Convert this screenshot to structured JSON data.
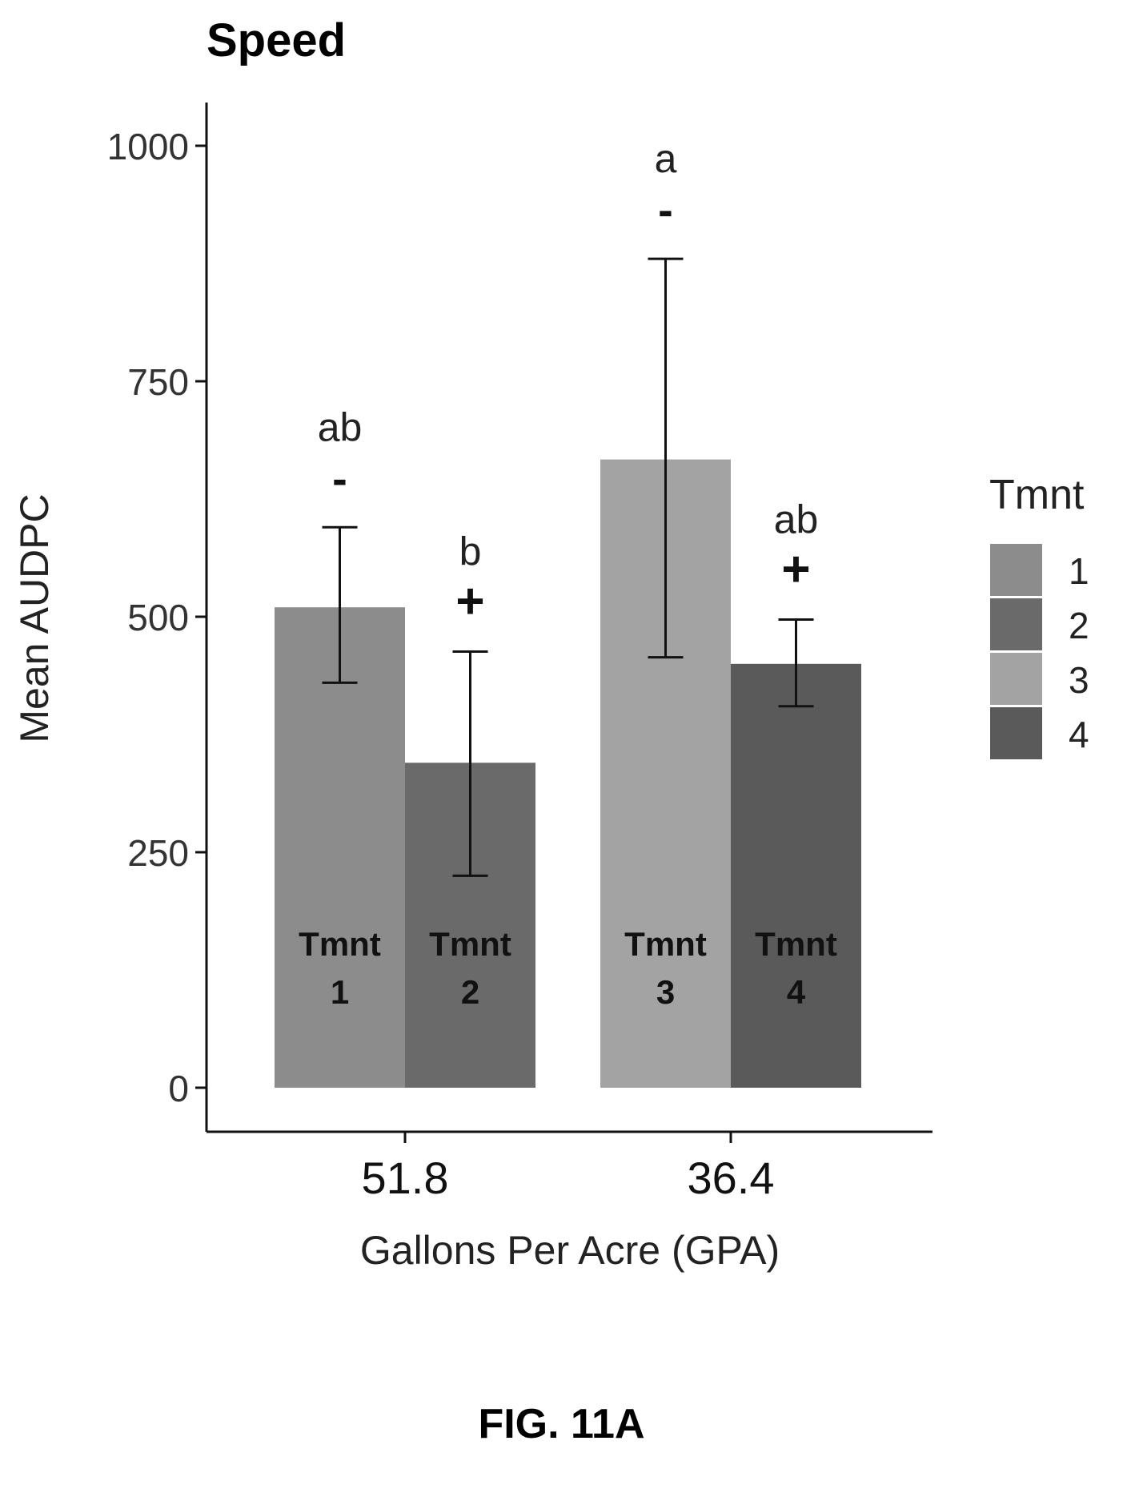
{
  "chart_data": {
    "type": "bar",
    "title": "Speed",
    "xlabel": "Gallons Per Acre (GPA)",
    "ylabel": "Mean AUDPC",
    "ylim": [
      -50,
      1050
    ],
    "yticks": [
      0,
      250,
      500,
      750,
      1000
    ],
    "grid": false,
    "legend": {
      "title": "Tmnt",
      "position": "right",
      "entries": [
        {
          "label": "1",
          "color": "#8c8c8c"
        },
        {
          "label": "2",
          "color": "#6a6a6a"
        },
        {
          "label": "3",
          "color": "#a3a3a3"
        },
        {
          "label": "4",
          "color": "#5a5a5a"
        }
      ]
    },
    "categories": [
      "51.8",
      "36.4"
    ],
    "bars": [
      {
        "category": "51.8",
        "tmnt": "1",
        "value": 510,
        "err_low": 430,
        "err_high": 595,
        "letter": "ab",
        "sign": "-",
        "label_top": "Tmnt",
        "label_bottom": "1",
        "color": "#8c8c8c"
      },
      {
        "category": "51.8",
        "tmnt": "2",
        "value": 345,
        "err_low": 225,
        "err_high": 463,
        "letter": "b",
        "sign": "+",
        "label_top": "Tmnt",
        "label_bottom": "2",
        "color": "#6a6a6a"
      },
      {
        "category": "36.4",
        "tmnt": "3",
        "value": 667,
        "err_low": 457,
        "err_high": 880,
        "letter": "a",
        "sign": "-",
        "label_top": "Tmnt",
        "label_bottom": "3",
        "color": "#a3a3a3"
      },
      {
        "category": "36.4",
        "tmnt": "4",
        "value": 450,
        "err_low": 405,
        "err_high": 497,
        "letter": "ab",
        "sign": "+",
        "label_top": "Tmnt",
        "label_bottom": "4",
        "color": "#5a5a5a"
      }
    ]
  },
  "caption": "FIG. 11A"
}
